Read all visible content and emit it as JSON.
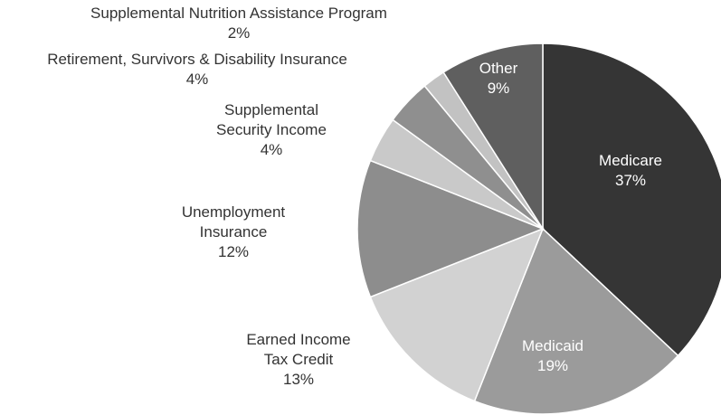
{
  "chart_data": {
    "type": "pie",
    "title": "",
    "start_angle_deg": 0,
    "direction": "clockwise",
    "slices": [
      {
        "label": [
          "Medicare"
        ],
        "pct_text": "37%",
        "value": 37,
        "color": "#353535",
        "text_color": "#ffffff"
      },
      {
        "label": [
          "Medicaid"
        ],
        "pct_text": "19%",
        "value": 19,
        "color": "#9b9b9b",
        "text_color": "#ffffff"
      },
      {
        "label": [
          "Earned Income",
          "Tax Credit"
        ],
        "pct_text": "13%",
        "value": 13,
        "color": "#d2d2d2",
        "text_color": "#333333"
      },
      {
        "label": [
          "Unemployment",
          "Insurance"
        ],
        "pct_text": "12%",
        "value": 12,
        "color": "#8d8d8d",
        "text_color": "#333333"
      },
      {
        "label": [
          "Supplemental",
          "Security Income"
        ],
        "pct_text": "4%",
        "value": 4,
        "color": "#c9c9c9",
        "text_color": "#333333"
      },
      {
        "label": [
          "Retirement, Survivors & Disability Insurance"
        ],
        "pct_text": "4%",
        "value": 4,
        "color": "#8f8f8f",
        "text_color": "#333333"
      },
      {
        "label": [
          "Supplemental Nutrition Assistance Program"
        ],
        "pct_text": "2%",
        "value": 2,
        "color": "#c2c2c2",
        "text_color": "#333333"
      },
      {
        "label": [
          "Other"
        ],
        "pct_text": "9%",
        "value": 9,
        "color": "#5f5f5f",
        "text_color": "#ffffff"
      }
    ]
  }
}
